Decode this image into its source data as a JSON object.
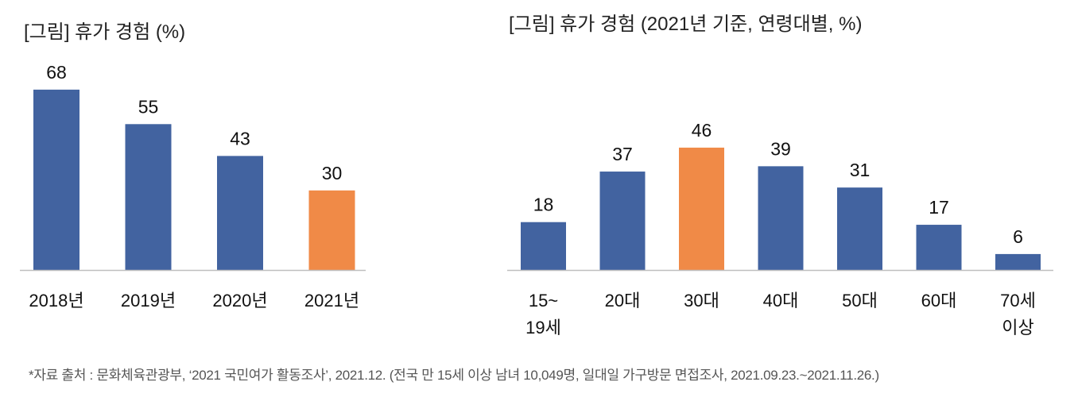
{
  "chart_data": [
    {
      "type": "bar",
      "title": "[그림] 휴가 경험 (%)",
      "categories": [
        "2018년",
        "2019년",
        "2020년",
        "2021년"
      ],
      "values": [
        68,
        55,
        43,
        30
      ],
      "highlight_index": 3,
      "xlabel": "",
      "ylabel": "",
      "ylim": [
        0,
        70
      ],
      "grid": false
    },
    {
      "type": "bar",
      "title": "[그림] 휴가 경험 (2021년 기준, 연령대별, %)",
      "categories": [
        [
          "15~",
          "19세"
        ],
        [
          "20대"
        ],
        [
          "30대"
        ],
        [
          "40대"
        ],
        [
          "50대"
        ],
        [
          "60대"
        ],
        [
          "70세",
          "이상"
        ]
      ],
      "values": [
        18,
        37,
        46,
        39,
        31,
        17,
        6
      ],
      "highlight_index": 2,
      "xlabel": "",
      "ylabel": "",
      "ylim": [
        0,
        50
      ],
      "grid": false
    }
  ],
  "colors": {
    "bar": "#4263A0",
    "highlight": "#F08A47",
    "axis": "#BFBFBF"
  },
  "footnote": "*자료 출처 : 문화체육관광부, ‘2021 국민여가 활동조사’, 2021.12. (전국 만 15세 이상 남녀 10,049명, 일대일 가구방문 면접조사, 2021.09.23.~2021.11.26.)"
}
